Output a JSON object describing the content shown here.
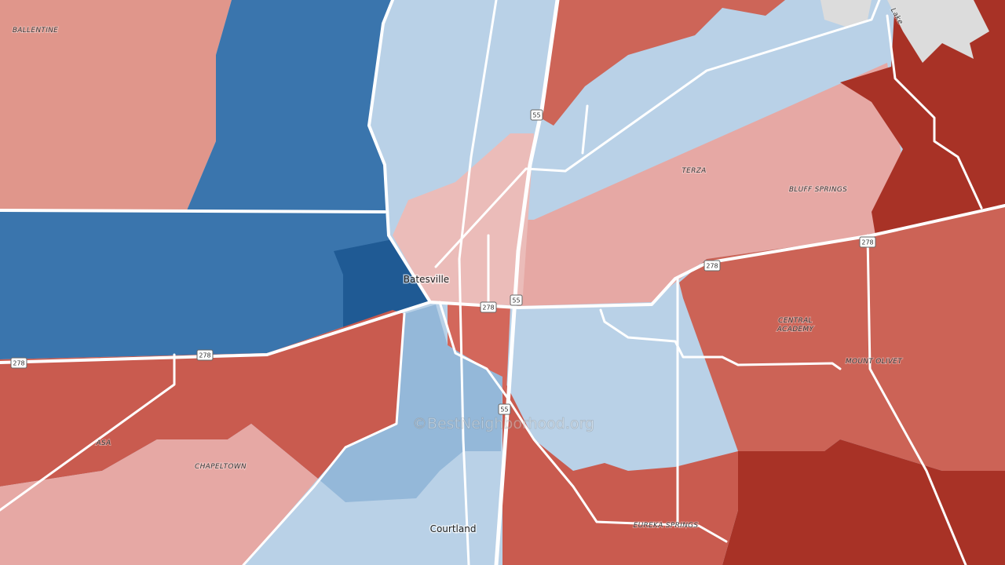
{
  "labels": [
    "BALLENTINE",
    "TERZA",
    "BLUFF SPRINGS",
    "CENTRAL",
    "ACADEMY",
    "MOUNT OLIVET",
    "ASA",
    "CHAPELTOWN",
    "EUREKA SPRINGS"
  ],
  "towns": [
    "Batesville",
    "Courtland"
  ],
  "shields": [
    "55",
    "278"
  ],
  "water_label": "Lake",
  "watermark": "©BestNeighborhood.org"
}
